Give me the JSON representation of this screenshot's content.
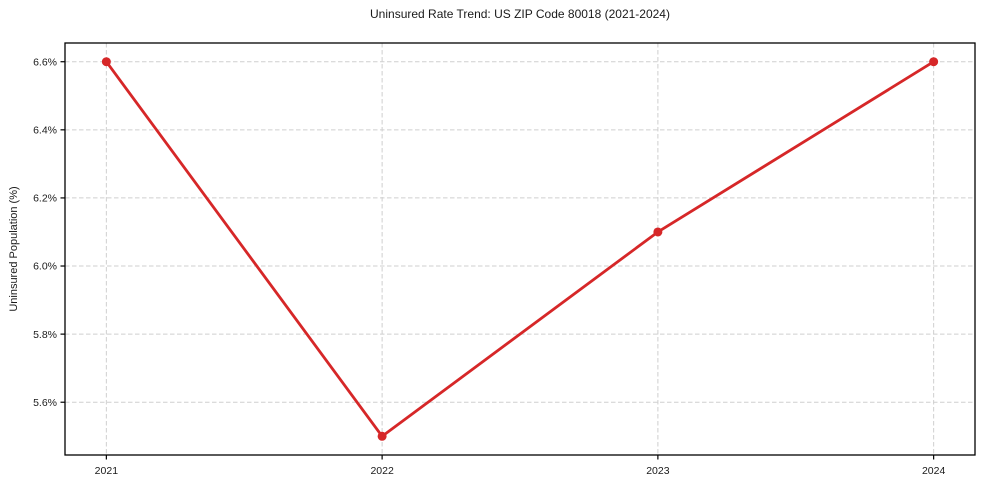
{
  "title": "Uninsured Rate Trend: US ZIP Code 80018 (2021-2024)",
  "colors": {
    "line": "#d62728",
    "grid": "#cfcfcf",
    "axis": "#000000",
    "text": "#1a1a1a",
    "background": "#ffffff"
  },
  "chart_data": {
    "type": "line",
    "title": "Uninsured Rate Trend: US ZIP Code 80018 (2021-2024)",
    "xlabel": "",
    "ylabel": "Uninsured Population (%)",
    "x": [
      2021,
      2022,
      2023,
      2024
    ],
    "y": [
      6.6,
      5.5,
      6.1,
      6.6
    ],
    "xticks": {
      "values": [
        2021,
        2022,
        2023,
        2024
      ],
      "labels": [
        "2021",
        "2022",
        "2023",
        "2024"
      ]
    },
    "yticks": {
      "values": [
        5.6,
        5.8,
        6.0,
        6.2,
        6.4,
        6.6
      ],
      "labels": [
        "5.6%",
        "5.8%",
        "6.0%",
        "6.2%",
        "6.4%",
        "6.6%"
      ]
    },
    "xlim": [
      2020.85,
      2024.15
    ],
    "ylim": [
      5.445,
      6.655
    ],
    "grid": true,
    "grid_style": "dashed",
    "legend": "none",
    "line_color": "#d62728",
    "marker": "circle"
  }
}
